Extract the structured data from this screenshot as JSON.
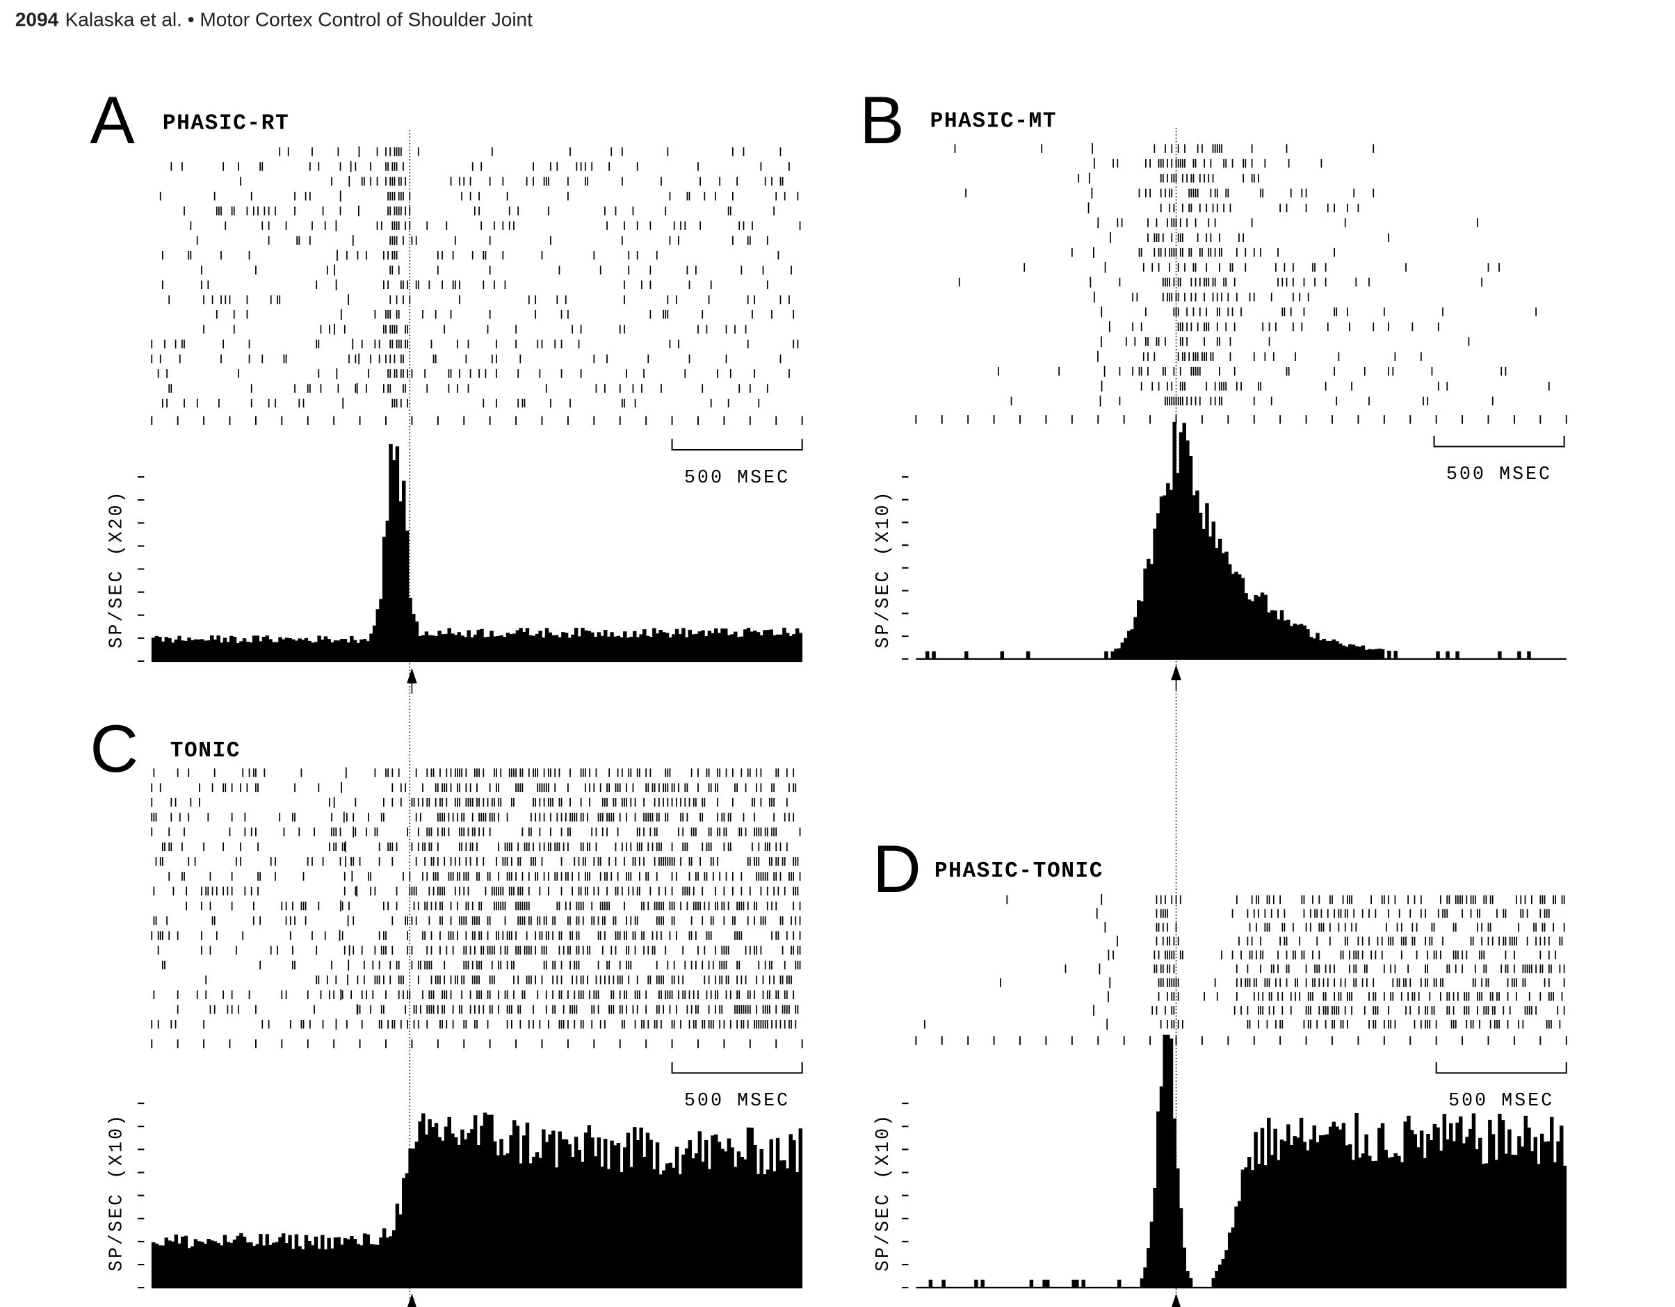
{
  "header": {
    "page_number": "2094",
    "running_title": "Kalaska et al. • Motor Cortex Control of Shoulder Joint"
  },
  "figure": {
    "panels": [
      {
        "letter": "A",
        "title": "PHASIC-RT",
        "scale_bar_label": "500 MSEC",
        "y_axis_label": "SP/SEC (X20)"
      },
      {
        "letter": "B",
        "title": "PHASIC-MT",
        "scale_bar_label": "500 MSEC",
        "y_axis_label": "SP/SEC (X10)"
      },
      {
        "letter": "C",
        "title": "TONIC",
        "scale_bar_label": "500 MSEC",
        "y_axis_label": "SP/SEC (X10)"
      },
      {
        "letter": "D",
        "title": "PHASIC-TONIC",
        "scale_bar_label": "500 MSEC",
        "y_axis_label": "SP/SEC (X10)"
      }
    ]
  }
}
